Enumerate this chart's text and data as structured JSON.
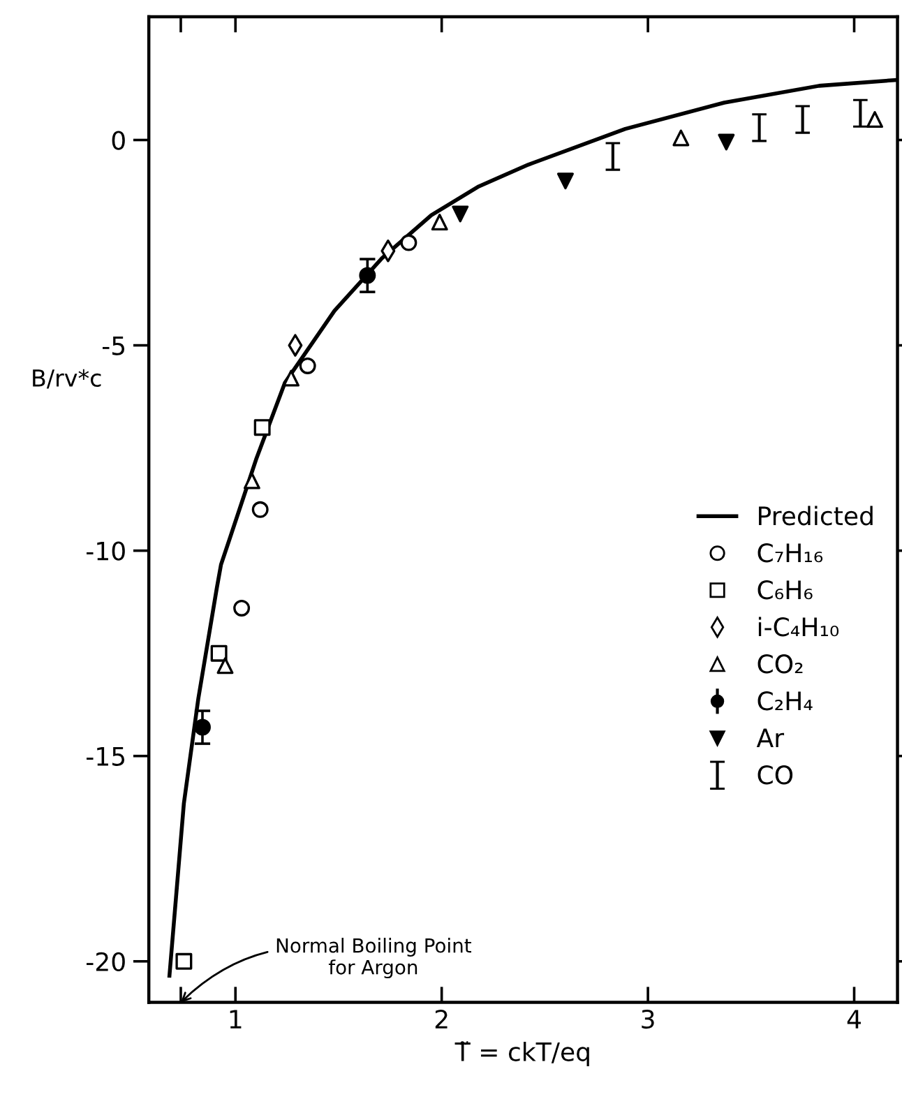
{
  "chart_data": {
    "type": "scatter",
    "xlabel": "T̃ = ckT/eq",
    "ylabel": "B/rv*c",
    "xlim": [
      0.58,
      4.21
    ],
    "ylim": [
      -21,
      3
    ],
    "xticks": [
      {
        "value": 0.735,
        "label": null
      },
      1,
      2,
      3,
      4
    ],
    "yticks": [
      -20,
      -15,
      -10,
      -5,
      0
    ],
    "grid": false,
    "legend": "right",
    "annotations": [
      "Normal Boiling Point\nfor Argon"
    ],
    "series": [
      {
        "name": "Predicted",
        "type": "line",
        "color": "#000000",
        "marker": "none",
        "line_style": "solid",
        "x": [
          0.68,
          0.75,
          0.82,
          0.91,
          0.93,
          0.97,
          1.1,
          1.24,
          1.48,
          1.71,
          1.95,
          2.18,
          2.42,
          2.89,
          3.37,
          3.83,
          4.2
        ],
        "values": [
          -20.35,
          -16.15,
          -13.6,
          -10.9,
          -10.34,
          -9.74,
          -7.78,
          -5.91,
          -4.16,
          -2.88,
          -1.83,
          -1.13,
          -0.6,
          0.27,
          0.91,
          1.32,
          1.46
        ]
      },
      {
        "name": "C₇H₁₆",
        "color": "#000000",
        "marker": "circle",
        "x": [
          1.03,
          1.12,
          1.35,
          1.84
        ],
        "values": [
          -11.4,
          -9.0,
          -5.5,
          -2.5
        ]
      },
      {
        "name": "C₆H₆",
        "color": "#000000",
        "marker": "square",
        "x": [
          0.75,
          0.92,
          1.13
        ],
        "values": [
          -20.0,
          -12.5,
          -7.0
        ]
      },
      {
        "name": "i-C₄H₁₀",
        "color": "#000000",
        "marker": "diamond",
        "x": [
          1.29,
          1.74
        ],
        "values": [
          -5.0,
          -2.7
        ]
      },
      {
        "name": "CO₂",
        "color": "#000000",
        "marker": "triangle",
        "x": [
          0.95,
          1.08,
          1.27,
          1.99,
          3.16,
          4.1
        ],
        "values": [
          -12.8,
          -8.3,
          -5.8,
          -2.0,
          0.05,
          0.5
        ]
      },
      {
        "name": "C₂H₄",
        "color": "#000000",
        "marker": "circle",
        "x": [
          0.84,
          1.64
        ],
        "values": [
          -14.3,
          -3.3
        ],
        "errors": [
          0.4,
          0.4
        ]
      },
      {
        "name": "Ar",
        "color": "#000000",
        "marker": "triangle_down",
        "x": [
          2.09,
          2.6,
          3.38
        ],
        "values": [
          -1.8,
          -1.0,
          -0.05
        ]
      },
      {
        "name": "CO",
        "color": "#000000",
        "x": [
          2.83,
          3.54,
          3.75,
          4.03
        ],
        "values": [
          -0.4,
          0.3,
          0.5,
          0.65
        ]
      }
    ]
  }
}
